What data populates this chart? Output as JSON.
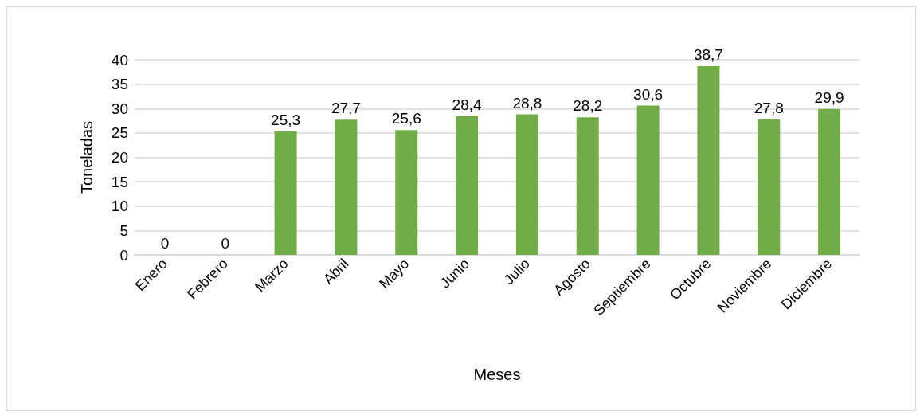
{
  "chart_data": {
    "type": "bar",
    "xlabel": "Meses",
    "ylabel": "Toneladas",
    "categories": [
      "Enero",
      "Febrero",
      "Marzo",
      "Abril",
      "Mayo",
      "Junio",
      "Julio",
      "Agosto",
      "Septiembre",
      "Octubre",
      "Noviembre",
      "Diciembre"
    ],
    "values": [
      0,
      0,
      25.3,
      27.7,
      25.6,
      28.4,
      28.8,
      28.2,
      30.6,
      38.7,
      27.8,
      29.9
    ],
    "value_labels": [
      "0",
      "0",
      "25,3",
      "27,7",
      "25,6",
      "28,4",
      "28,8",
      "28,2",
      "30,6",
      "38,7",
      "27,8",
      "29,9"
    ],
    "color": "#70ad47",
    "ylim": [
      0,
      40
    ],
    "yticks": [
      0,
      5,
      10,
      15,
      20,
      25,
      30,
      35,
      40
    ],
    "grid": "y"
  }
}
